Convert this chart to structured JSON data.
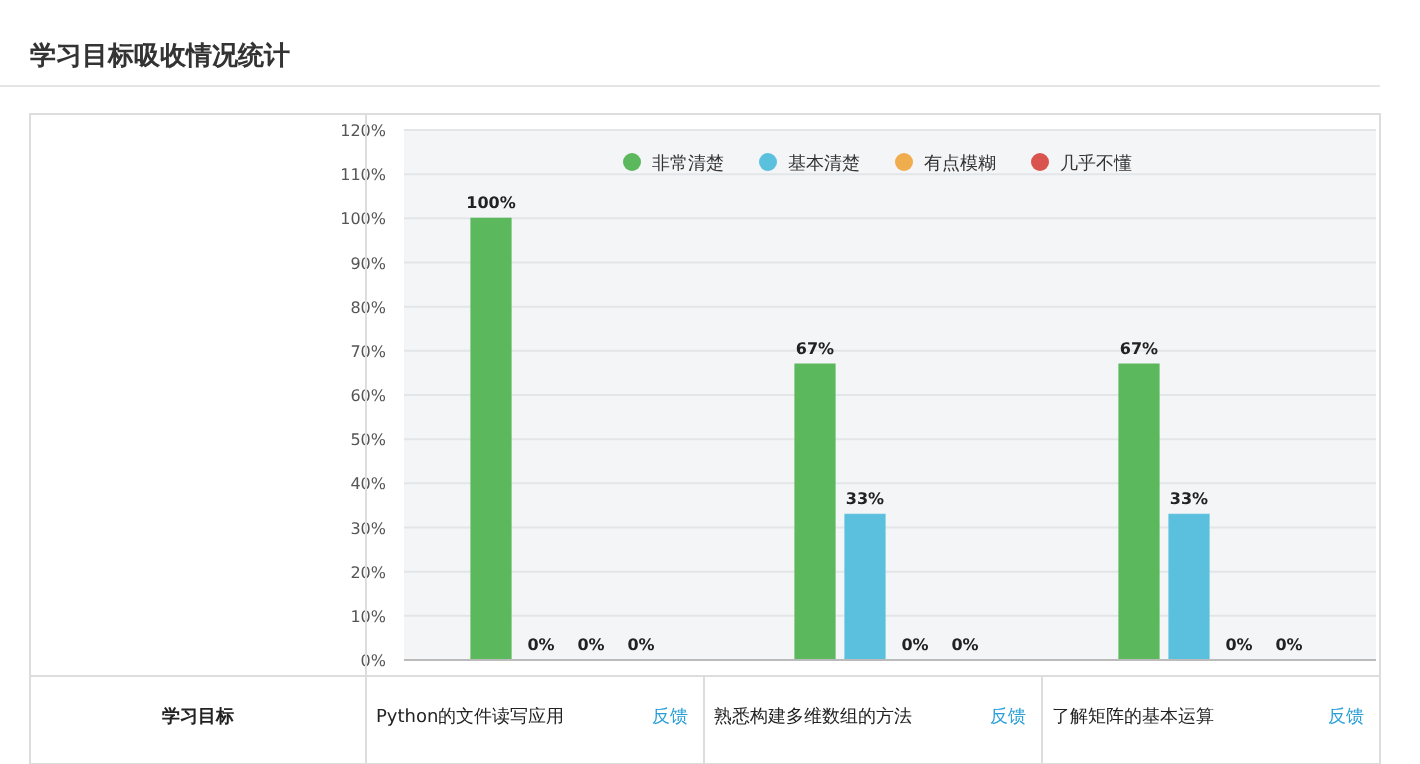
{
  "chart_data": {
    "type": "bar",
    "title": "学习目标吸收情况统计",
    "categories": [
      "Python的文件读写应用",
      "熟悉构建多维数组的方法",
      "了解矩阵的基本运算"
    ],
    "series": [
      {
        "name": "非常清楚",
        "color": "#5cb85c",
        "values": [
          100,
          67,
          67
        ],
        "value_labels": [
          "100%",
          "67%",
          "67%"
        ]
      },
      {
        "name": "基本清楚",
        "color": "#5bc0de",
        "values": [
          0,
          33,
          33
        ],
        "value_labels": [
          "0%",
          "33%",
          "33%"
        ]
      },
      {
        "name": "有点模糊",
        "color": "#f0ad4e",
        "values": [
          0,
          0,
          0
        ],
        "value_labels": [
          "0%",
          "0%",
          "0%"
        ]
      },
      {
        "name": "几乎不懂",
        "color": "#d9534f",
        "values": [
          0,
          0,
          0
        ],
        "value_labels": [
          "0%",
          "0%",
          "0%"
        ]
      }
    ],
    "ylim": [
      0,
      120
    ],
    "yticks": [
      {
        "value": 0,
        "label": "0%"
      },
      {
        "value": 10,
        "label": "10%"
      },
      {
        "value": 20,
        "label": "20%"
      },
      {
        "value": 30,
        "label": "30%"
      },
      {
        "value": 40,
        "label": "40%"
      },
      {
        "value": 50,
        "label": "50%"
      },
      {
        "value": 60,
        "label": "60%"
      },
      {
        "value": 70,
        "label": "70%"
      },
      {
        "value": 80,
        "label": "80%"
      },
      {
        "value": 90,
        "label": "90%"
      },
      {
        "value": 100,
        "label": "100%"
      },
      {
        "value": 110,
        "label": "110%"
      },
      {
        "value": 120,
        "label": "120%"
      }
    ],
    "grid": "y",
    "legend": "top",
    "annotations": [
      "学习目标",
      "反馈",
      "反馈",
      "反馈"
    ]
  }
}
